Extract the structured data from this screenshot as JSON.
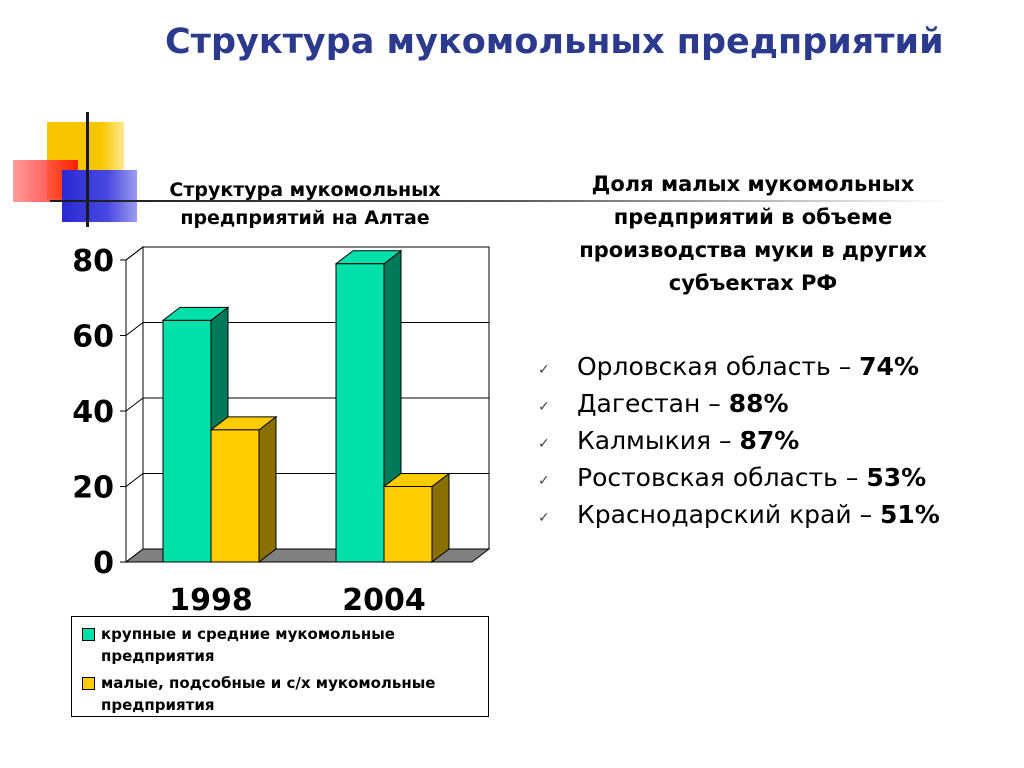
{
  "slide": {
    "title": "Структура мукомольных предприятий"
  },
  "right_panel": {
    "heading": "Доля малых мукомольных предприятий в объеме производства муки в других субъектах РФ",
    "items": [
      {
        "label": "Орловская область – ",
        "value": "74%"
      },
      {
        "label": "Дагестан – ",
        "value": "88%"
      },
      {
        "label": "Калмыкия – ",
        "value": "87%"
      },
      {
        "label": "Ростовская область – ",
        "value": "53%"
      },
      {
        "label": "Краснодарский край – ",
        "value": "51%"
      }
    ],
    "bullet_icon": "check-icon"
  },
  "chart_data": {
    "type": "bar",
    "title": "Структура мукомольных предприятий на Алтае",
    "categories": [
      "1998",
      "2004"
    ],
    "series": [
      {
        "name": "крупные и средние мукомольные предприятия",
        "values": [
          64,
          79
        ],
        "color": "#00e0a8",
        "side_color": "#007a58"
      },
      {
        "name": "малые, подсобные и с/х мукомольные предприятия",
        "values": [
          35,
          20
        ],
        "color": "#ffcc00",
        "side_color": "#8a7000"
      }
    ],
    "ylim": [
      0,
      80
    ],
    "yticks": [
      0,
      20,
      40,
      60,
      80
    ],
    "grid": true,
    "legend": "bottom",
    "style": "3d-column"
  }
}
